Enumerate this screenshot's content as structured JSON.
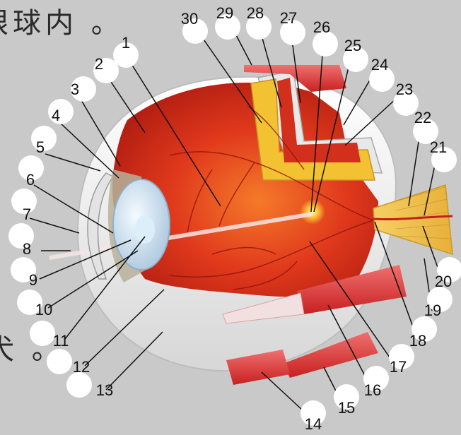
{
  "captions": {
    "top": "眼球内 。",
    "bottom": "犬 。"
  },
  "labels": [
    "1",
    "2",
    "3",
    "4",
    "5",
    "6",
    "7",
    "8",
    "9",
    "10",
    "11",
    "12",
    "13",
    "14",
    "15",
    "16",
    "17",
    "18",
    "19",
    "20",
    "21",
    "22",
    "23",
    "24",
    "25",
    "26",
    "27",
    "28",
    "29",
    "30"
  ],
  "colors": {
    "background": "#c9c9c9",
    "retina": "#e03a1a",
    "sclera": "#f2f2f2",
    "muscle": "#e23a3a",
    "optic_nerve": "#f1c14b",
    "lens": "#cfe3f2"
  }
}
